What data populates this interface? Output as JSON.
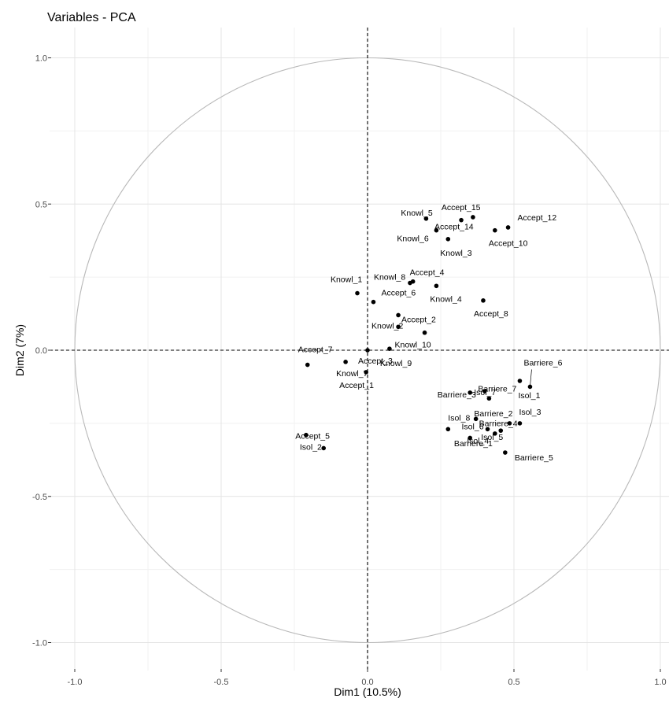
{
  "chart_data": {
    "type": "scatter",
    "title": "Variables - PCA",
    "xlabel": "Dim1 (10.5%)",
    "ylabel": "Dim2 (7%)",
    "xlim": [
      -1.1,
      1.03
    ],
    "ylim": [
      -1.1,
      1.1
    ],
    "x_ticks": [
      -1.0,
      -0.5,
      0.0,
      0.5,
      1.0
    ],
    "x_tick_labels": [
      "-1.0",
      "-0.5",
      "0.0",
      "0.5",
      "1.0"
    ],
    "y_ticks": [
      -1.0,
      -0.5,
      0.0,
      0.5,
      1.0
    ],
    "y_tick_labels": [
      "-1.0",
      "-0.5",
      "0.0",
      "0.5",
      "1.0"
    ],
    "grid": true,
    "reference_lines": [
      "x = 0",
      "y = 0"
    ],
    "unit_circle": true,
    "points": [
      {
        "label": "Knowl_5",
        "x": 0.2,
        "y": 0.45
      },
      {
        "label": "Accept_15",
        "x": 0.36,
        "y": 0.455
      },
      {
        "label": "Accept_12",
        "x": 0.48,
        "y": 0.42
      },
      {
        "label": "Accept_14",
        "x": 0.32,
        "y": 0.445
      },
      {
        "label": "Knowl_6",
        "x": 0.235,
        "y": 0.41
      },
      {
        "label": "Accept_10",
        "x": 0.435,
        "y": 0.41
      },
      {
        "label": "Knowl_3",
        "x": 0.275,
        "y": 0.38
      },
      {
        "label": "Knowl_8",
        "x": 0.145,
        "y": 0.23
      },
      {
        "label": "Accept_4",
        "x": 0.155,
        "y": 0.235
      },
      {
        "label": "Knowl_1",
        "x": -0.035,
        "y": 0.195
      },
      {
        "label": "Accept_6",
        "x": 0.02,
        "y": 0.165
      },
      {
        "label": "Knowl_4",
        "x": 0.235,
        "y": 0.22
      },
      {
        "label": "Accept_8",
        "x": 0.395,
        "y": 0.17
      },
      {
        "label": "Knowl_2",
        "x": 0.105,
        "y": 0.12
      },
      {
        "label": "Accept_2",
        "x": 0.105,
        "y": 0.08
      },
      {
        "label": "Knowl_10",
        "x": 0.195,
        "y": 0.06
      },
      {
        "label": "Knowl_9",
        "x": 0.075,
        "y": 0.005
      },
      {
        "label": "Knowl_7",
        "x": -0.075,
        "y": -0.04
      },
      {
        "label": "Accept_7",
        "x": -0.205,
        "y": -0.05
      },
      {
        "label": "Accept_1",
        "x": -0.005,
        "y": -0.075
      },
      {
        "label": "Isol_1",
        "x": 0.52,
        "y": -0.105
      },
      {
        "label": "Barriere_6",
        "x": 0.555,
        "y": -0.125
      },
      {
        "label": "Isol_7",
        "x": 0.35,
        "y": -0.145
      },
      {
        "label": "Barriere_3",
        "x": 0.4,
        "y": -0.14
      },
      {
        "label": "Barriere_7",
        "x": 0.415,
        "y": -0.165
      },
      {
        "label": "Barriere_4",
        "x": 0.37,
        "y": -0.235
      },
      {
        "label": "Barriere_2",
        "x": 0.485,
        "y": -0.25
      },
      {
        "label": "Isol_3",
        "x": 0.52,
        "y": -0.25
      },
      {
        "label": "Isol_8",
        "x": 0.275,
        "y": -0.27
      },
      {
        "label": "Isol_6",
        "x": 0.41,
        "y": -0.27
      },
      {
        "label": "Isol_4",
        "x": 0.35,
        "y": -0.3
      },
      {
        "label": "Barriere_1",
        "x": 0.435,
        "y": -0.285
      },
      {
        "label": "Isol_5",
        "x": 0.455,
        "y": -0.275
      },
      {
        "label": "Barriere_5",
        "x": 0.47,
        "y": -0.35
      },
      {
        "label": "Isol_2",
        "x": -0.21,
        "y": -0.29
      },
      {
        "label": "Accept_5",
        "x": -0.15,
        "y": -0.335
      },
      {
        "label": "Accept_3",
        "x": 0,
        "y": 0
      }
    ]
  }
}
